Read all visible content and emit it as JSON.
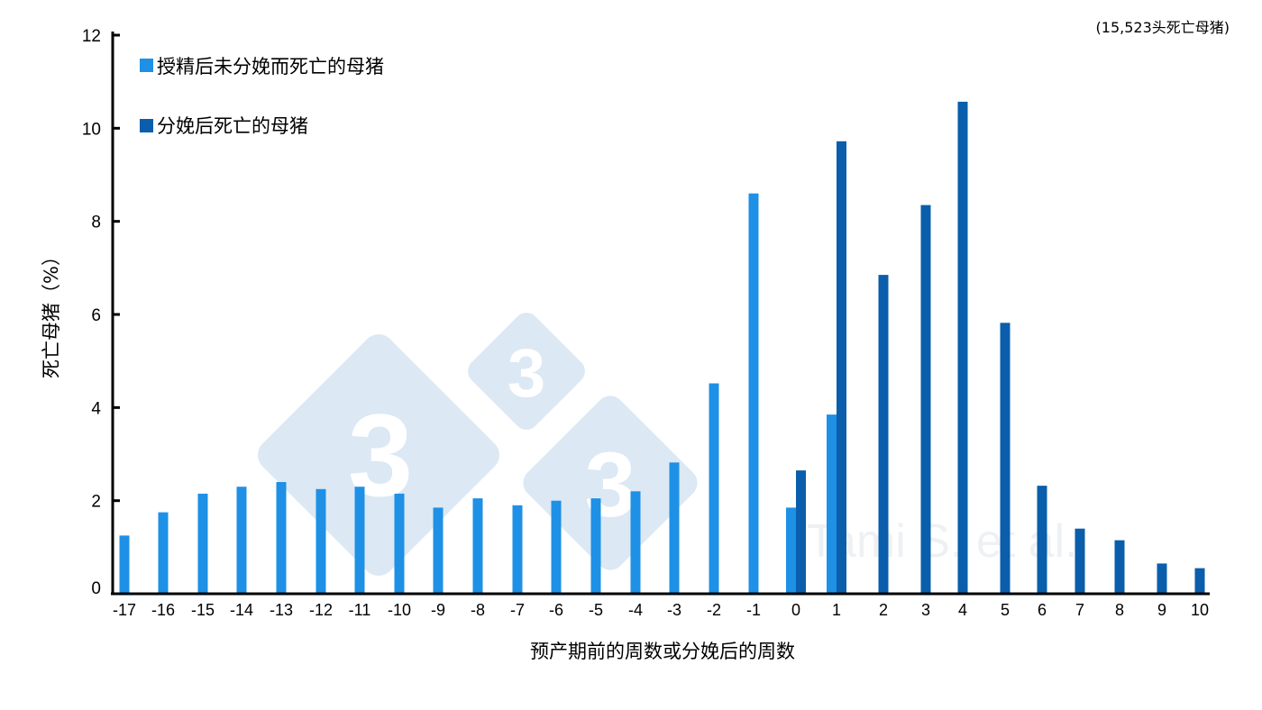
{
  "colors": {
    "series_a": "#1e90e6",
    "series_b": "#0a5eab",
    "axis": "#000000",
    "watermark": "#dce8f4"
  },
  "annotation": "(15,523头死亡母猪)",
  "watermark": {
    "digits": [
      "3",
      "3",
      "3"
    ],
    "credit": "Tami S. et al."
  },
  "chart_data": {
    "type": "bar",
    "xlabel": "预产期前的周数或分娩后的周数",
    "ylabel": "死亡母猪（%）",
    "ylim": [
      0,
      12
    ],
    "yticks": [
      0,
      2,
      4,
      6,
      8,
      10,
      12
    ],
    "grid": false,
    "legend_position": "top-left",
    "categories": [
      "-17",
      "-16",
      "-15",
      "-14",
      "-13",
      "-12",
      "-11",
      "-10",
      "-9",
      "-8",
      "-7",
      "-6",
      "-5",
      "-4",
      "-3",
      "-2",
      "-1",
      "0",
      "1",
      "2",
      "3",
      "4",
      "5",
      "6",
      "7",
      "8",
      "9",
      "10"
    ],
    "series": [
      {
        "name": "授精后未分娩而死亡的母猪",
        "values": [
          1.25,
          1.75,
          2.15,
          2.3,
          2.4,
          2.25,
          2.3,
          2.15,
          1.85,
          2.05,
          1.9,
          2.0,
          2.05,
          2.2,
          2.82,
          4.52,
          8.6,
          1.85,
          3.85,
          null,
          null,
          null,
          null,
          null,
          null,
          null,
          null,
          null
        ]
      },
      {
        "name": "分娩后死亡的母猪",
        "values": [
          null,
          null,
          null,
          null,
          null,
          null,
          null,
          null,
          null,
          null,
          null,
          null,
          null,
          null,
          null,
          null,
          null,
          2.65,
          9.72,
          6.85,
          8.35,
          10.57,
          5.82,
          2.32,
          1.4,
          1.15,
          0.65,
          0.55
        ]
      }
    ]
  }
}
